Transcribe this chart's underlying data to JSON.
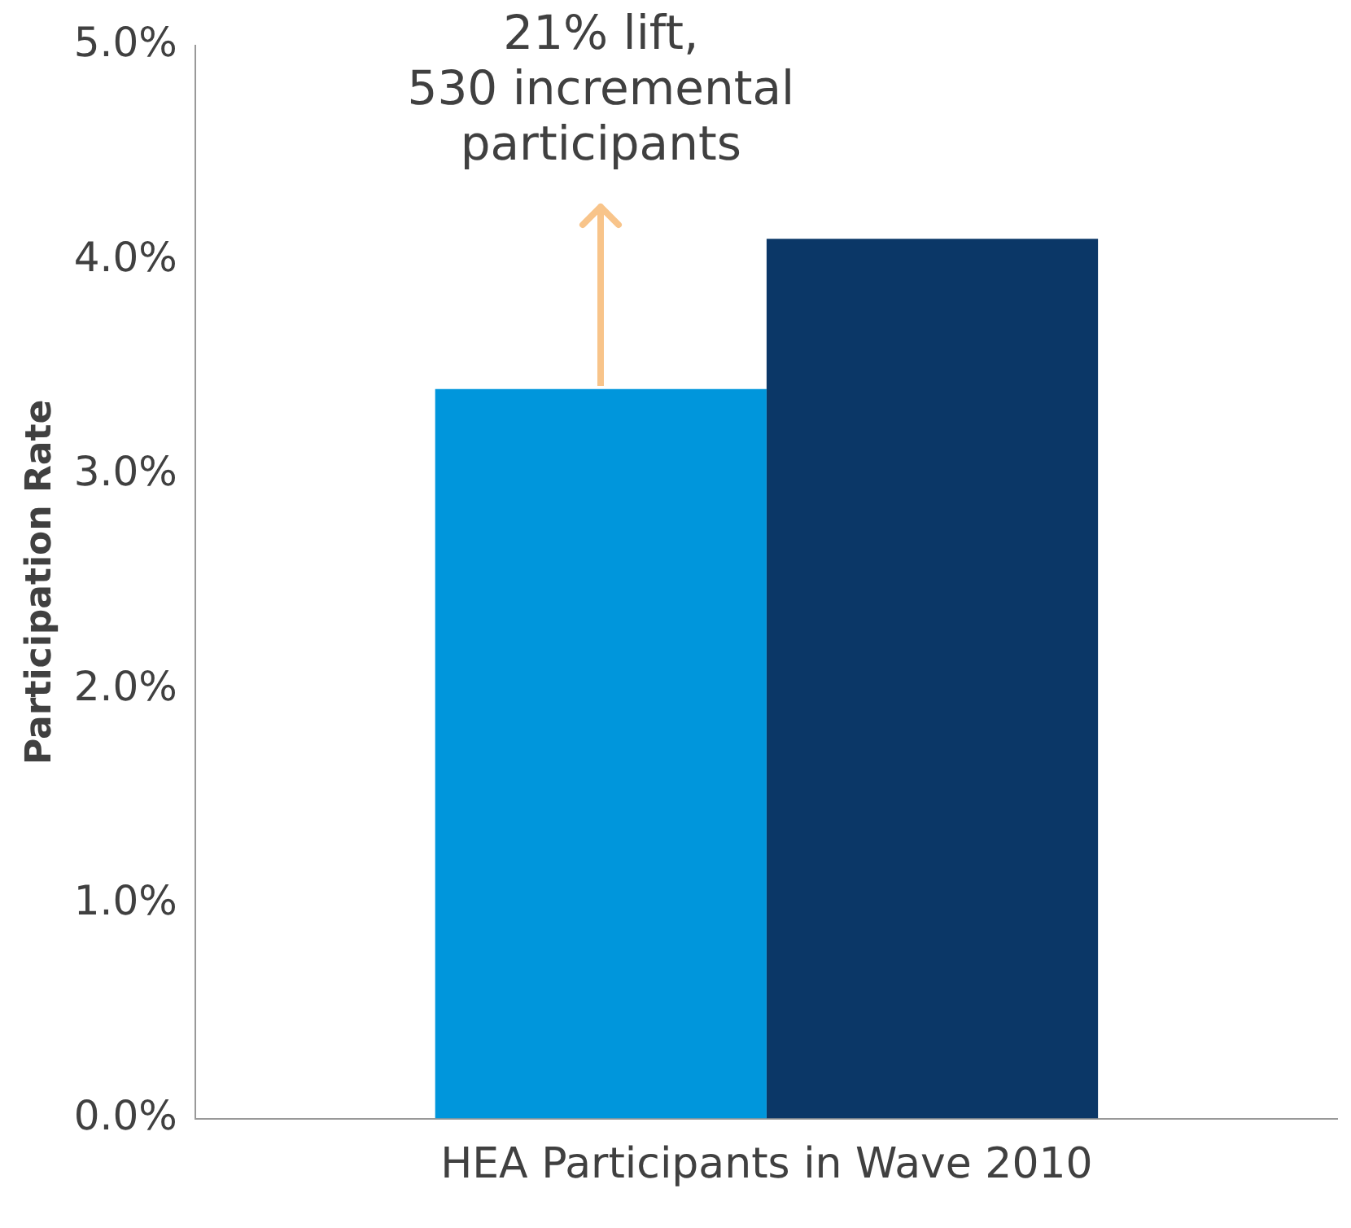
{
  "chart_data": {
    "type": "bar",
    "ylabel": "Participation Rate",
    "categories": [
      "HEA Participants in Wave 2010"
    ],
    "series": [
      {
        "color": "#0096dc",
        "values": [
          3.4
        ]
      },
      {
        "color": "#0b3767",
        "values": [
          4.1
        ]
      }
    ],
    "ylim": [
      0,
      5
    ],
    "yticks": [
      {
        "value": 0,
        "label": "0.0%"
      },
      {
        "value": 1,
        "label": "1.0%"
      },
      {
        "value": 2,
        "label": "2.0%"
      },
      {
        "value": 3,
        "label": "3.0%"
      },
      {
        "value": 4,
        "label": "4.0%"
      },
      {
        "value": 5,
        "label": "5.0%"
      }
    ],
    "grid": false,
    "legend": false,
    "annotations": [
      "21% lift, 530 incremental participants"
    ]
  }
}
